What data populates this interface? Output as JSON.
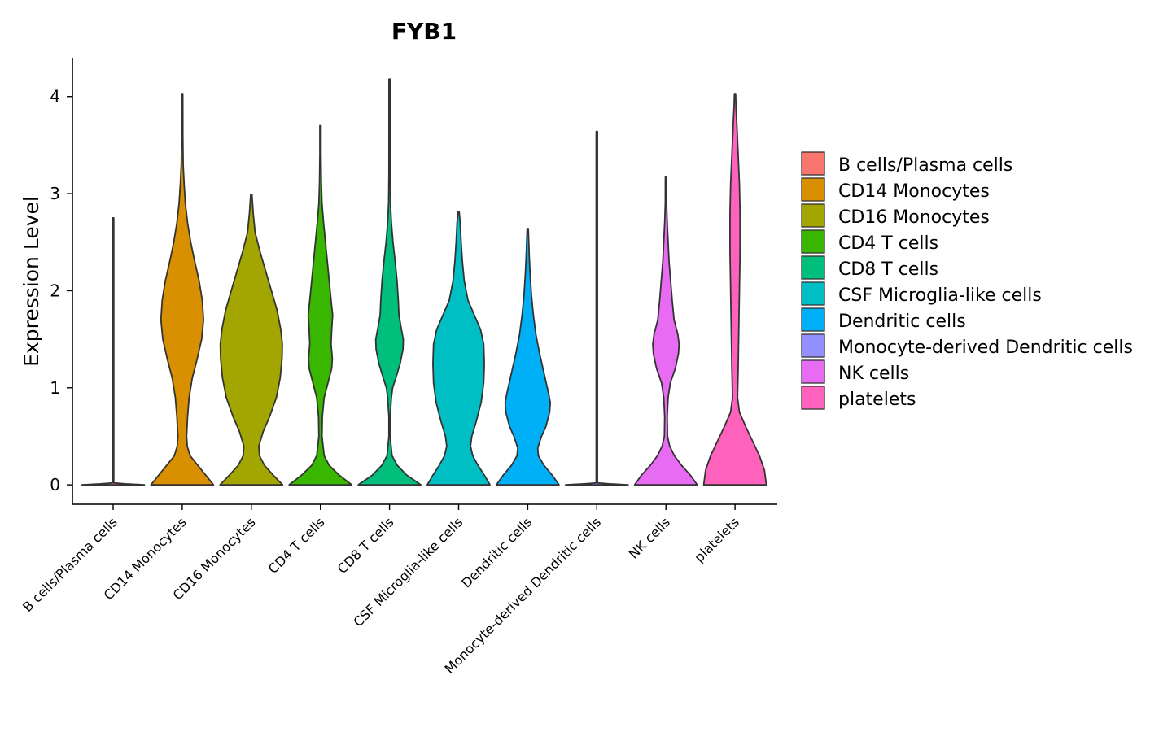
{
  "chart_data": {
    "type": "violin",
    "title": "FYB1",
    "xlabel": "",
    "ylabel": "Expression Level",
    "ylim": [
      -0.2,
      4.4
    ],
    "yticks": [
      0,
      1,
      2,
      3,
      4
    ],
    "grid": false,
    "legend_position": "right",
    "categories": [
      "B cells/Plasma cells",
      "CD14 Monocytes",
      "CD16 Monocytes",
      "CD4 T cells",
      "CD8 T cells",
      "CSF Microglia-like cells",
      "Dendritic cells",
      "Monocyte-derived Dendritic cells",
      "NK cells",
      "platelets"
    ],
    "series": [
      {
        "name": "B cells/Plasma cells",
        "color": "#F8766D",
        "max": 2.75,
        "profile": [
          [
            0,
            1.0
          ],
          [
            0.01,
            0.4
          ],
          [
            0.02,
            0.02
          ],
          [
            2.75,
            0.02
          ]
        ]
      },
      {
        "name": "CD14 Monocytes",
        "color": "#D89000",
        "max": 4.03,
        "profile": [
          [
            0,
            1.0
          ],
          [
            0.1,
            0.75
          ],
          [
            0.2,
            0.5
          ],
          [
            0.3,
            0.25
          ],
          [
            0.4,
            0.16
          ],
          [
            0.5,
            0.14
          ],
          [
            0.7,
            0.17
          ],
          [
            0.9,
            0.22
          ],
          [
            1.1,
            0.32
          ],
          [
            1.3,
            0.48
          ],
          [
            1.5,
            0.62
          ],
          [
            1.7,
            0.68
          ],
          [
            1.9,
            0.64
          ],
          [
            2.1,
            0.54
          ],
          [
            2.3,
            0.4
          ],
          [
            2.5,
            0.27
          ],
          [
            2.7,
            0.17
          ],
          [
            2.9,
            0.1
          ],
          [
            3.1,
            0.06
          ],
          [
            3.3,
            0.03
          ],
          [
            3.6,
            0.02
          ],
          [
            4.03,
            0.01
          ]
        ]
      },
      {
        "name": "CD16 Monocytes",
        "color": "#A3A500",
        "max": 2.99,
        "profile": [
          [
            0,
            1.0
          ],
          [
            0.1,
            0.7
          ],
          [
            0.2,
            0.42
          ],
          [
            0.3,
            0.26
          ],
          [
            0.4,
            0.24
          ],
          [
            0.55,
            0.38
          ],
          [
            0.7,
            0.58
          ],
          [
            0.9,
            0.8
          ],
          [
            1.1,
            0.92
          ],
          [
            1.3,
            0.98
          ],
          [
            1.45,
            0.99
          ],
          [
            1.6,
            0.94
          ],
          [
            1.8,
            0.82
          ],
          [
            2.0,
            0.64
          ],
          [
            2.2,
            0.46
          ],
          [
            2.4,
            0.28
          ],
          [
            2.6,
            0.12
          ],
          [
            2.8,
            0.06
          ],
          [
            2.99,
            0.02
          ]
        ]
      },
      {
        "name": "CD4 T cells",
        "color": "#39B600",
        "max": 3.7,
        "profile": [
          [
            0,
            1.0
          ],
          [
            0.1,
            0.6
          ],
          [
            0.2,
            0.28
          ],
          [
            0.3,
            0.12
          ],
          [
            0.5,
            0.05
          ],
          [
            0.7,
            0.06
          ],
          [
            0.9,
            0.12
          ],
          [
            1.1,
            0.28
          ],
          [
            1.2,
            0.36
          ],
          [
            1.3,
            0.38
          ],
          [
            1.45,
            0.34
          ],
          [
            1.6,
            0.36
          ],
          [
            1.75,
            0.39
          ],
          [
            1.9,
            0.34
          ],
          [
            2.1,
            0.28
          ],
          [
            2.3,
            0.22
          ],
          [
            2.5,
            0.16
          ],
          [
            2.7,
            0.1
          ],
          [
            2.9,
            0.05
          ],
          [
            3.1,
            0.03
          ],
          [
            3.4,
            0.015
          ],
          [
            3.7,
            0.01
          ]
        ]
      },
      {
        "name": "CD8 T cells",
        "color": "#00BF7D",
        "max": 4.18,
        "profile": [
          [
            0,
            1.0
          ],
          [
            0.1,
            0.55
          ],
          [
            0.2,
            0.25
          ],
          [
            0.3,
            0.08
          ],
          [
            0.5,
            0.02
          ],
          [
            0.7,
            0.02
          ],
          [
            0.9,
            0.06
          ],
          [
            1.0,
            0.1
          ],
          [
            1.1,
            0.2
          ],
          [
            1.25,
            0.34
          ],
          [
            1.4,
            0.43
          ],
          [
            1.5,
            0.44
          ],
          [
            1.6,
            0.38
          ],
          [
            1.75,
            0.3
          ],
          [
            1.9,
            0.28
          ],
          [
            2.1,
            0.24
          ],
          [
            2.3,
            0.18
          ],
          [
            2.5,
            0.11
          ],
          [
            2.7,
            0.06
          ],
          [
            2.9,
            0.03
          ],
          [
            3.2,
            0.02
          ],
          [
            3.6,
            0.01
          ],
          [
            4.18,
            0.005
          ]
        ]
      },
      {
        "name": "CSF Microglia-like cells",
        "color": "#00BFC4",
        "max": 2.81,
        "profile": [
          [
            0,
            1.0
          ],
          [
            0.1,
            0.82
          ],
          [
            0.2,
            0.62
          ],
          [
            0.3,
            0.45
          ],
          [
            0.4,
            0.38
          ],
          [
            0.5,
            0.42
          ],
          [
            0.65,
            0.56
          ],
          [
            0.85,
            0.72
          ],
          [
            1.05,
            0.8
          ],
          [
            1.25,
            0.82
          ],
          [
            1.45,
            0.8
          ],
          [
            1.6,
            0.7
          ],
          [
            1.75,
            0.5
          ],
          [
            1.9,
            0.3
          ],
          [
            2.1,
            0.18
          ],
          [
            2.3,
            0.12
          ],
          [
            2.5,
            0.08
          ],
          [
            2.7,
            0.05
          ],
          [
            2.81,
            0.01
          ]
        ]
      },
      {
        "name": "Dendritic cells",
        "color": "#00B0F6",
        "max": 2.64,
        "profile": [
          [
            0,
            1.0
          ],
          [
            0.1,
            0.78
          ],
          [
            0.2,
            0.52
          ],
          [
            0.3,
            0.34
          ],
          [
            0.38,
            0.32
          ],
          [
            0.5,
            0.44
          ],
          [
            0.6,
            0.58
          ],
          [
            0.75,
            0.7
          ],
          [
            0.85,
            0.72
          ],
          [
            0.95,
            0.66
          ],
          [
            1.15,
            0.52
          ],
          [
            1.35,
            0.38
          ],
          [
            1.55,
            0.26
          ],
          [
            1.75,
            0.18
          ],
          [
            1.95,
            0.12
          ],
          [
            2.15,
            0.08
          ],
          [
            2.35,
            0.05
          ],
          [
            2.64,
            0.01
          ]
        ]
      },
      {
        "name": "Monocyte-derived Dendritic cells",
        "color": "#9590FF",
        "max": 3.64,
        "profile": [
          [
            0,
            1.0
          ],
          [
            0.01,
            0.4
          ],
          [
            0.02,
            0.02
          ],
          [
            3.64,
            0.02
          ]
        ]
      },
      {
        "name": "NK cells",
        "color": "#E76BF3",
        "max": 3.17,
        "profile": [
          [
            0,
            1.0
          ],
          [
            0.1,
            0.78
          ],
          [
            0.2,
            0.5
          ],
          [
            0.3,
            0.27
          ],
          [
            0.4,
            0.12
          ],
          [
            0.5,
            0.05
          ],
          [
            0.7,
            0.04
          ],
          [
            0.9,
            0.07
          ],
          [
            1.05,
            0.14
          ],
          [
            1.2,
            0.3
          ],
          [
            1.35,
            0.4
          ],
          [
            1.45,
            0.42
          ],
          [
            1.55,
            0.38
          ],
          [
            1.7,
            0.26
          ],
          [
            1.9,
            0.2
          ],
          [
            2.1,
            0.15
          ],
          [
            2.3,
            0.1
          ],
          [
            2.5,
            0.07
          ],
          [
            2.7,
            0.04
          ],
          [
            2.9,
            0.02
          ],
          [
            3.17,
            0.01
          ]
        ]
      },
      {
        "name": "platelets",
        "color": "#FF62BC",
        "max": 4.03,
        "profile": [
          [
            0,
            1.0
          ],
          [
            0.15,
            0.94
          ],
          [
            0.3,
            0.78
          ],
          [
            0.45,
            0.56
          ],
          [
            0.6,
            0.34
          ],
          [
            0.75,
            0.14
          ],
          [
            0.9,
            0.08
          ],
          [
            1.2,
            0.1
          ],
          [
            1.6,
            0.12
          ],
          [
            2.0,
            0.14
          ],
          [
            2.4,
            0.16
          ],
          [
            2.8,
            0.16
          ],
          [
            3.1,
            0.14
          ],
          [
            3.4,
            0.1
          ],
          [
            3.7,
            0.06
          ],
          [
            3.9,
            0.03
          ],
          [
            4.03,
            0.005
          ]
        ]
      }
    ]
  }
}
